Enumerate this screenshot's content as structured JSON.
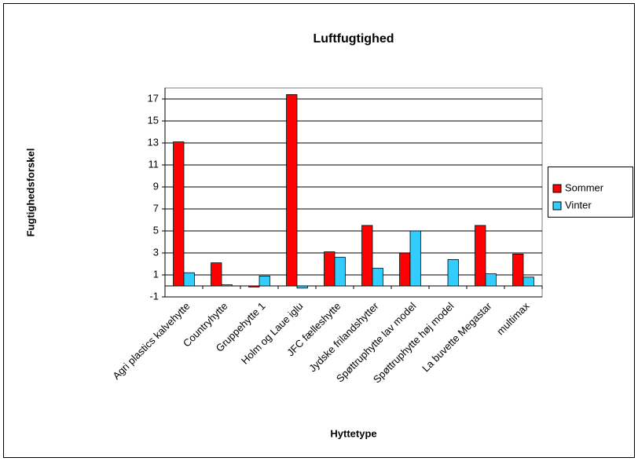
{
  "chart_data": {
    "type": "bar",
    "title": "Luftfugtighed",
    "x_label": "Hyttetype",
    "y_label": "Fugtighedsforskel",
    "categories": [
      "Agri plastics kalvehytte",
      "Countryhytte",
      "Gruppehytte 1",
      "Holm og Laue iglu",
      "JFC fælleshytte",
      "Jydske frilandshytter",
      "Spøttruphytte lav model",
      "Spøttruphytte høj model",
      "La buvette Megastar",
      "multimax"
    ],
    "series": [
      {
        "name": "Sommer",
        "color": "#ff0000",
        "values": [
          13.1,
          2.1,
          -0.1,
          17.4,
          3.1,
          5.5,
          3.0,
          null,
          5.5,
          2.9
        ]
      },
      {
        "name": "Vinter",
        "color": "#33ccff",
        "values": [
          1.2,
          0.1,
          0.9,
          -0.2,
          2.6,
          1.6,
          5.0,
          2.4,
          1.1,
          0.8
        ]
      }
    ],
    "ylim": [
      -1,
      18
    ],
    "yticks": [
      -1,
      1,
      3,
      5,
      7,
      9,
      11,
      13,
      15,
      17
    ],
    "grid": true,
    "legend": "right"
  }
}
